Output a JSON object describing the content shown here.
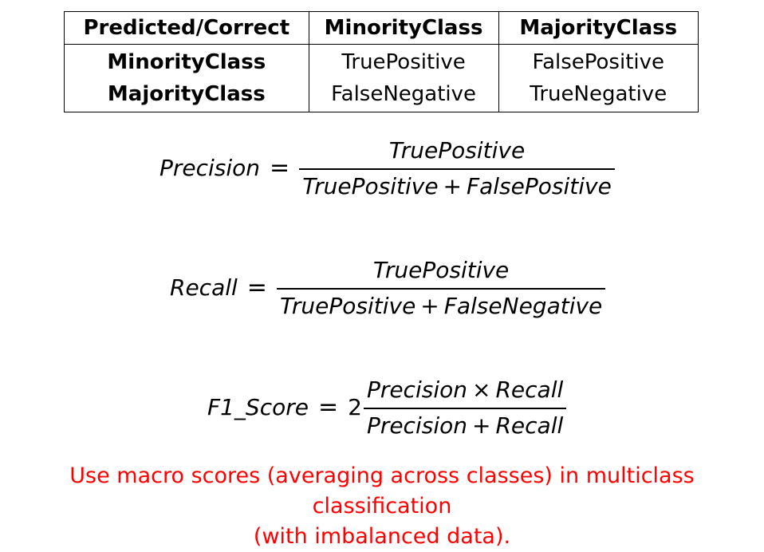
{
  "table": {
    "header": [
      "Predicted/Correct",
      "MinorityClass",
      "MajorityClass"
    ],
    "rows": [
      {
        "label": "MinorityClass",
        "cells": [
          "TruePositive",
          "FalsePositive"
        ]
      },
      {
        "label": "MajorityClass",
        "cells": [
          "FalseNegative",
          "TrueNegative"
        ]
      }
    ]
  },
  "formulas": {
    "precision": {
      "lhs": "Precision",
      "eq": "=",
      "numerator": "TruePositive",
      "den_a": "TruePositive",
      "den_op": "+",
      "den_b": "FalsePositive"
    },
    "recall": {
      "lhs": "Recall",
      "eq": "=",
      "numerator": "TruePositive",
      "den_a": "TruePositive",
      "den_op": "+",
      "den_b": "FalseNegative"
    },
    "f1": {
      "lhs_a": "F1",
      "lhs_sep": "_",
      "lhs_b": "Score",
      "eq": "=",
      "coefficient": "2",
      "num_a": "Precision",
      "num_op": "×",
      "num_b": "Recall",
      "den_a": "Precision",
      "den_op": "+",
      "den_b": "Recall"
    }
  },
  "note": {
    "line1": "Use macro scores (averaging across classes) in multiclass classification",
    "line2": "(with imbalanced data).",
    "color": "#ff0000"
  }
}
